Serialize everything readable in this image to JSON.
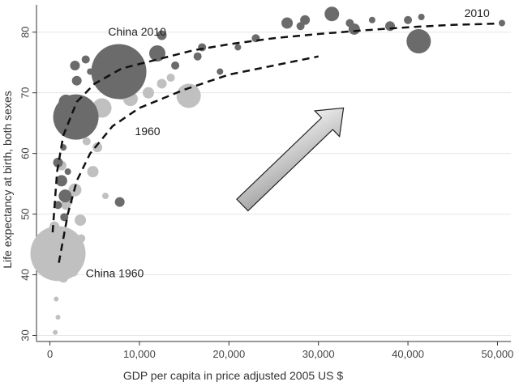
{
  "chart_data": {
    "type": "scatter",
    "title": "",
    "xlabel": "GDP per capita in price adjusted 2005 US $",
    "ylabel": "Life expectancy at birth, both sexes",
    "xlim": [
      -1500,
      51500
    ],
    "ylim": [
      29,
      84.5
    ],
    "x_ticks": [
      0,
      10000,
      20000,
      30000,
      40000,
      50000
    ],
    "x_tick_labels": [
      "0",
      "10,000",
      "20,000",
      "30,000",
      "40,000",
      "50,000"
    ],
    "y_ticks": [
      30,
      40,
      50,
      60,
      70,
      80
    ],
    "y_tick_labels": [
      "30",
      "40",
      "50",
      "60",
      "70",
      "80"
    ],
    "grid": "horizontal",
    "colors": {
      "series_1960": "#c0c0c0",
      "series_2010": "#6b6b6b",
      "trend": "#111111",
      "arrow_fill": "#cfcfcf",
      "grid": "#e6e6e6"
    },
    "annotations": [
      {
        "text": "China 2010",
        "x": 6500,
        "y": 79.4
      },
      {
        "text": "1960",
        "x": 9500,
        "y": 63.0
      },
      {
        "text": "China 1960",
        "x": 4000,
        "y": 39.6
      },
      {
        "text": "2010",
        "x": 46300,
        "y": 82.5
      }
    ],
    "arrow": {
      "from": [
        21500,
        51.5
      ],
      "to": [
        32800,
        67.5
      ]
    },
    "series": [
      {
        "name": "1960",
        "color": "#c0c0c0",
        "trend": [
          [
            1000,
            42
          ],
          [
            2000,
            50
          ],
          [
            3000,
            55.5
          ],
          [
            4500,
            60
          ],
          [
            7000,
            64.5
          ],
          [
            10000,
            67.5
          ],
          [
            15000,
            70.5
          ],
          [
            20000,
            73
          ],
          [
            25000,
            74.5
          ],
          [
            30000,
            76
          ]
        ],
        "points": [
          {
            "x": 900,
            "y": 43.5,
            "r": 34
          },
          {
            "x": 1500,
            "y": 39.5,
            "r": 6
          },
          {
            "x": 700,
            "y": 36,
            "r": 3
          },
          {
            "x": 900,
            "y": 33,
            "r": 3
          },
          {
            "x": 600,
            "y": 30.5,
            "r": 3
          },
          {
            "x": 500,
            "y": 48,
            "r": 6
          },
          {
            "x": 1200,
            "y": 46,
            "r": 5
          },
          {
            "x": 2700,
            "y": 45.5,
            "r": 4
          },
          {
            "x": 1800,
            "y": 51.5,
            "r": 6
          },
          {
            "x": 2800,
            "y": 54,
            "r": 8
          },
          {
            "x": 3400,
            "y": 49,
            "r": 7
          },
          {
            "x": 3500,
            "y": 46,
            "r": 5
          },
          {
            "x": 4800,
            "y": 57,
            "r": 7
          },
          {
            "x": 1300,
            "y": 58,
            "r": 6
          },
          {
            "x": 4100,
            "y": 62,
            "r": 5
          },
          {
            "x": 5300,
            "y": 61,
            "r": 6
          },
          {
            "x": 3000,
            "y": 65,
            "r": 8
          },
          {
            "x": 5800,
            "y": 67.5,
            "r": 12
          },
          {
            "x": 8000,
            "y": 69.5,
            "r": 5
          },
          {
            "x": 9000,
            "y": 69,
            "r": 9
          },
          {
            "x": 11000,
            "y": 70,
            "r": 7
          },
          {
            "x": 12500,
            "y": 71.5,
            "r": 6
          },
          {
            "x": 13500,
            "y": 72.5,
            "r": 5
          },
          {
            "x": 15500,
            "y": 69.5,
            "r": 15
          },
          {
            "x": 2200,
            "y": 52,
            "r": 4
          },
          {
            "x": 6200,
            "y": 53,
            "r": 4
          },
          {
            "x": 2600,
            "y": 40.5,
            "r": 6
          }
        ]
      },
      {
        "name": "2010",
        "color": "#6b6b6b",
        "trend": [
          [
            300,
            47
          ],
          [
            800,
            57
          ],
          [
            1500,
            63
          ],
          [
            3000,
            68.5
          ],
          [
            5000,
            71.5
          ],
          [
            8000,
            74
          ],
          [
            12000,
            75.5
          ],
          [
            16000,
            77
          ],
          [
            20000,
            78
          ],
          [
            25000,
            79
          ],
          [
            30000,
            79.7
          ],
          [
            35000,
            80.3
          ],
          [
            40000,
            80.8
          ],
          [
            45000,
            81.2
          ],
          [
            50000,
            81.4
          ]
        ],
        "points": [
          {
            "x": 7700,
            "y": 73.5,
            "r": 34
          },
          {
            "x": 2900,
            "y": 66,
            "r": 28
          },
          {
            "x": 1800,
            "y": 68.5,
            "r": 9
          },
          {
            "x": 2800,
            "y": 74.5,
            "r": 6
          },
          {
            "x": 4000,
            "y": 75.5,
            "r": 5
          },
          {
            "x": 3000,
            "y": 72,
            "r": 6
          },
          {
            "x": 4500,
            "y": 73.5,
            "r": 4
          },
          {
            "x": 1500,
            "y": 61,
            "r": 4
          },
          {
            "x": 1300,
            "y": 55.5,
            "r": 7
          },
          {
            "x": 1700,
            "y": 53,
            "r": 8
          },
          {
            "x": 900,
            "y": 58.5,
            "r": 6
          },
          {
            "x": 900,
            "y": 51.5,
            "r": 5
          },
          {
            "x": 1600,
            "y": 49.5,
            "r": 5
          },
          {
            "x": 2000,
            "y": 57,
            "r": 4
          },
          {
            "x": 7800,
            "y": 52,
            "r": 6
          },
          {
            "x": 12000,
            "y": 76.5,
            "r": 10
          },
          {
            "x": 14000,
            "y": 74.5,
            "r": 5
          },
          {
            "x": 16500,
            "y": 76,
            "r": 5
          },
          {
            "x": 17000,
            "y": 77.5,
            "r": 5
          },
          {
            "x": 12500,
            "y": 79.5,
            "r": 6
          },
          {
            "x": 23000,
            "y": 79,
            "r": 5
          },
          {
            "x": 26500,
            "y": 81.5,
            "r": 7
          },
          {
            "x": 28000,
            "y": 81,
            "r": 5
          },
          {
            "x": 28500,
            "y": 82,
            "r": 6
          },
          {
            "x": 31500,
            "y": 83,
            "r": 9
          },
          {
            "x": 33500,
            "y": 81.5,
            "r": 5
          },
          {
            "x": 34000,
            "y": 80.5,
            "r": 7
          },
          {
            "x": 36000,
            "y": 82,
            "r": 4
          },
          {
            "x": 38000,
            "y": 81,
            "r": 6
          },
          {
            "x": 40000,
            "y": 82,
            "r": 5
          },
          {
            "x": 41200,
            "y": 78.5,
            "r": 15
          },
          {
            "x": 41500,
            "y": 82.5,
            "r": 4
          },
          {
            "x": 19000,
            "y": 73.5,
            "r": 4
          },
          {
            "x": 21000,
            "y": 77.5,
            "r": 4
          },
          {
            "x": 50500,
            "y": 81.5,
            "r": 4
          }
        ]
      }
    ]
  }
}
